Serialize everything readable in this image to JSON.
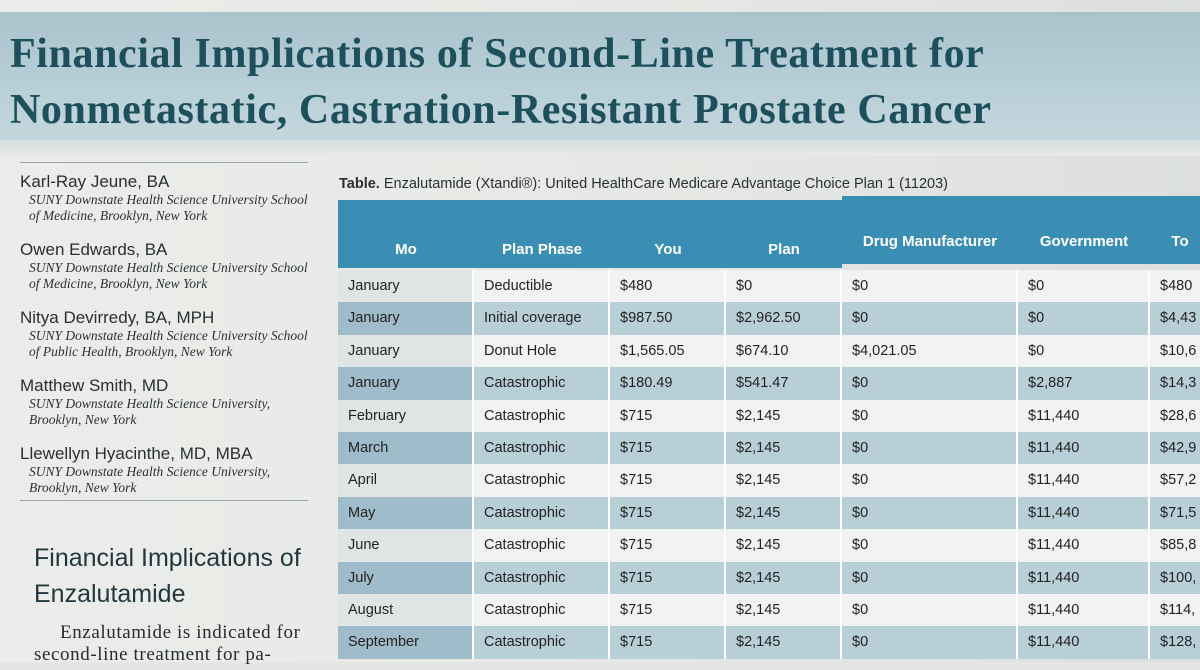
{
  "title": {
    "line1": "Financial Implications of Second-Line Treatment for",
    "line2": "Nonmetastatic, Castration-Resistant Prostate Cancer"
  },
  "authors": [
    {
      "name": "Karl-Ray Jeune, BA",
      "affil1": "SUNY Downstate Health Science University School",
      "affil2": "of Medicine, Brooklyn, New York"
    },
    {
      "name": "Owen Edwards, BA",
      "affil1": "SUNY Downstate Health Science University School",
      "affil2": "of Medicine, Brooklyn, New York"
    },
    {
      "name": "Nitya Devirredy, BA, MPH",
      "affil1": "SUNY Downstate Health Science University School",
      "affil2": "of Public Health, Brooklyn, New York"
    },
    {
      "name": "Matthew Smith, MD",
      "affil1": "SUNY Downstate Health Science University,",
      "affil2": "Brooklyn, New York"
    },
    {
      "name": "Llewellyn Hyacinthe, MD, MBA",
      "affil1": "SUNY Downstate Health Science University,",
      "affil2": "Brooklyn, New York"
    }
  ],
  "section": {
    "heading_line1": "Financial Implications of",
    "heading_line2": "Enzalutamide",
    "body_line1": "Enzalutamide is indicated for",
    "body_line2": "second-line treatment for pa-"
  },
  "table": {
    "caption_label": "Table.",
    "caption_text": " Enzalutamide (Xtandi®): United HealthCare Medicare Advantage Choice Plan 1 (11203)",
    "headers": [
      "Mo",
      "Plan Phase",
      "You",
      "Plan",
      "Drug Manufacturer",
      "Government",
      "To"
    ],
    "rows": [
      [
        "January",
        "Deductible",
        "$480",
        "$0",
        "$0",
        "$0",
        "$480"
      ],
      [
        "January",
        "Initial coverage",
        "$987.50",
        "$2,962.50",
        "$0",
        "$0",
        "$4,43"
      ],
      [
        "January",
        "Donut Hole",
        "$1,565.05",
        "$674.10",
        "$4,021.05",
        "$0",
        "$10,6"
      ],
      [
        "January",
        "Catastrophic",
        "$180.49",
        "$541.47",
        "$0",
        "$2,887",
        "$14,3"
      ],
      [
        "February",
        "Catastrophic",
        "$715",
        "$2,145",
        "$0",
        "$11,440",
        "$28,6"
      ],
      [
        "March",
        "Catastrophic",
        "$715",
        "$2,145",
        "$0",
        "$11,440",
        "$42,9"
      ],
      [
        "April",
        "Catastrophic",
        "$715",
        "$2,145",
        "$0",
        "$11,440",
        "$57,2"
      ],
      [
        "May",
        "Catastrophic",
        "$715",
        "$2,145",
        "$0",
        "$11,440",
        "$71,5"
      ],
      [
        "June",
        "Catastrophic",
        "$715",
        "$2,145",
        "$0",
        "$11,440",
        "$85,8"
      ],
      [
        "July",
        "Catastrophic",
        "$715",
        "$2,145",
        "$0",
        "$11,440",
        "$100,"
      ],
      [
        "August",
        "Catastrophic",
        "$715",
        "$2,145",
        "$0",
        "$11,440",
        "$114,"
      ],
      [
        "September",
        "Catastrophic",
        "$715",
        "$2,145",
        "$0",
        "$11,440",
        "$128,"
      ]
    ]
  },
  "colors": {
    "header_bg": "#3b8eb3",
    "title_text": "#1e4f5c",
    "row_light": "#f1f3f2",
    "row_dark": "#b9cfd8",
    "mo_light": "#dfe5e4",
    "mo_dark": "#9fbccb"
  }
}
